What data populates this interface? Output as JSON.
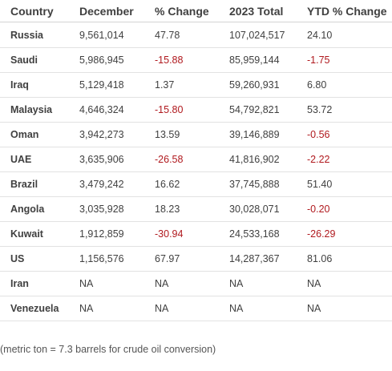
{
  "table": {
    "headers": [
      "Country",
      "December",
      "% Change",
      "2023 Total",
      "YTD % Change"
    ],
    "rows": [
      {
        "country": "Russia",
        "december": "9,561,014",
        "change": "47.78",
        "total": "107,024,517",
        "ytd": "24.10"
      },
      {
        "country": "Saudi",
        "december": "5,986,945",
        "change": "-15.88",
        "total": "85,959,144",
        "ytd": "-1.75"
      },
      {
        "country": "Iraq",
        "december": "5,129,418",
        "change": "1.37",
        "total": "59,260,931",
        "ytd": "6.80"
      },
      {
        "country": "Malaysia",
        "december": "4,646,324",
        "change": "-15.80",
        "total": "54,792,821",
        "ytd": "53.72"
      },
      {
        "country": "Oman",
        "december": "3,942,273",
        "change": "13.59",
        "total": "39,146,889",
        "ytd": "-0.56"
      },
      {
        "country": "UAE",
        "december": "3,635,906",
        "change": "-26.58",
        "total": "41,816,902",
        "ytd": "-2.22"
      },
      {
        "country": "Brazil",
        "december": "3,479,242",
        "change": "16.62",
        "total": "37,745,888",
        "ytd": "51.40"
      },
      {
        "country": "Angola",
        "december": "3,035,928",
        "change": "18.23",
        "total": "30,028,071",
        "ytd": "-0.20"
      },
      {
        "country": "Kuwait",
        "december": "1,912,859",
        "change": "-30.94",
        "total": "24,533,168",
        "ytd": "-26.29"
      },
      {
        "country": "US",
        "december": "1,156,576",
        "change": "67.97",
        "total": "14,287,367",
        "ytd": "81.06"
      },
      {
        "country": "Iran",
        "december": "NA",
        "change": "NA",
        "total": "NA",
        "ytd": "NA"
      },
      {
        "country": "Venezuela",
        "december": "NA",
        "change": "NA",
        "total": "NA",
        "ytd": "NA"
      }
    ]
  },
  "footnote": "(metric ton = 7.3 barrels for crude oil conversion)",
  "colors": {
    "text": "#404040",
    "negative": "#b0191e",
    "rule": "#e2e2e2"
  }
}
